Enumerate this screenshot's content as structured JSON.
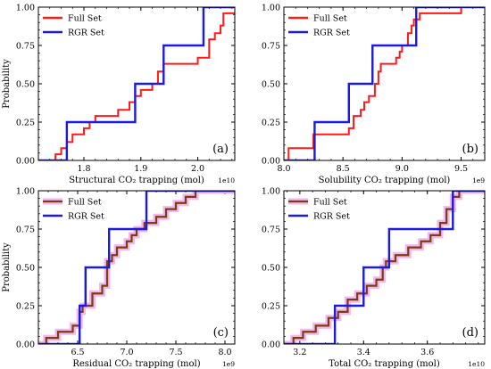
{
  "figure": {
    "legend": {
      "location": "upper-left"
    },
    "colors": {
      "full": "#ff1a1a",
      "rgr": "#1a1ae0",
      "full_shadow": "#f3b7f0",
      "residual_full": "#7a3e10",
      "rgr_outline": "#0000cc"
    }
  },
  "chart_data": [
    {
      "type": "line",
      "kind": "empirical-cdf",
      "panel_label": "(a)",
      "xlabel": "Structural CO₂ trapping (mol)",
      "ylabel": "Probability",
      "x_multiplier": "1e10",
      "xlim": [
        1.72,
        2.065
      ],
      "ylim": [
        0,
        1
      ],
      "xticks": [
        1.8,
        1.9,
        2.0
      ],
      "xtick_labels": [
        "1.8",
        "1.9",
        "2.0"
      ],
      "yticks": [
        0,
        0.25,
        0.5,
        0.75,
        1.0
      ],
      "ytick_labels": [
        "0.00",
        "0.25",
        "0.50",
        "0.75",
        "1.00"
      ],
      "style": "full-red",
      "series": [
        {
          "name": "Full Set",
          "x": [
            1.75,
            1.76,
            1.77,
            1.78,
            1.8,
            1.81,
            1.82,
            1.86,
            1.88,
            1.89,
            1.9,
            1.92,
            1.93,
            1.94,
            2.0,
            2.02,
            2.03,
            2.04,
            2.045
          ],
          "y": [
            0.04,
            0.08,
            0.12,
            0.17,
            0.21,
            0.25,
            0.29,
            0.33,
            0.38,
            0.42,
            0.46,
            0.5,
            0.58,
            0.63,
            0.67,
            0.79,
            0.83,
            0.88,
            0.96
          ]
        },
        {
          "name": "RGR Set",
          "x": [
            1.77,
            1.89,
            1.94,
            2.01,
            2.03
          ],
          "y": [
            0.25,
            0.5,
            0.75,
            1.0,
            1.0
          ]
        }
      ]
    },
    {
      "type": "line",
      "kind": "empirical-cdf",
      "panel_label": "(b)",
      "xlabel": "Solubility CO₂ trapping (mol)",
      "ylabel": "",
      "x_multiplier": "1e9",
      "xlim": [
        8.0,
        9.7
      ],
      "ylim": [
        0,
        1
      ],
      "xticks": [
        8.0,
        8.5,
        9.0,
        9.5
      ],
      "xtick_labels": [
        "8.0",
        "8.5",
        "9.0",
        "9.5"
      ],
      "yticks": [
        0,
        0.25,
        0.5,
        0.75,
        1.0
      ],
      "ytick_labels": [
        "0.00",
        "0.25",
        "0.50",
        "0.75",
        "1.00"
      ],
      "style": "full-red",
      "series": [
        {
          "name": "Full Set",
          "x": [
            8.04,
            8.25,
            8.55,
            8.59,
            8.65,
            8.68,
            8.72,
            8.77,
            8.8,
            8.82,
            8.95,
            8.98,
            9.0,
            9.05,
            9.08,
            9.1,
            9.15,
            9.2,
            9.5
          ],
          "y": [
            0.08,
            0.17,
            0.21,
            0.29,
            0.33,
            0.38,
            0.42,
            0.5,
            0.58,
            0.63,
            0.67,
            0.71,
            0.75,
            0.83,
            0.88,
            0.92,
            0.96,
            0.96,
            1.0
          ]
        },
        {
          "name": "RGR Set",
          "x": [
            8.26,
            8.55,
            8.75,
            9.12
          ],
          "y": [
            0.25,
            0.5,
            0.75,
            1.0
          ]
        }
      ]
    },
    {
      "type": "line",
      "kind": "empirical-cdf",
      "panel_label": "(c)",
      "xlabel": "Residual CO₂ trapping (mol)",
      "ylabel": "Probability",
      "x_multiplier": "1e9",
      "xlim": [
        6.1,
        8.1
      ],
      "ylim": [
        0,
        1
      ],
      "xticks": [
        6.5,
        7.0,
        7.5,
        8.0
      ],
      "xtick_labels": [
        "6.5",
        "7.0",
        "7.5",
        "8.0"
      ],
      "yticks": [
        0,
        0.25,
        0.5,
        0.75,
        1.0
      ],
      "ytick_labels": [
        "0.00",
        "0.25",
        "0.50",
        "0.75",
        "1.00"
      ],
      "style": "full-brown",
      "series": [
        {
          "name": "Full Set",
          "x": [
            6.18,
            6.3,
            6.45,
            6.52,
            6.55,
            6.65,
            6.75,
            6.8,
            6.85,
            6.9,
            7.0,
            7.05,
            7.1,
            7.18,
            7.3,
            7.4,
            7.5,
            7.6,
            7.7
          ],
          "y": [
            0.04,
            0.08,
            0.12,
            0.21,
            0.25,
            0.33,
            0.38,
            0.54,
            0.58,
            0.63,
            0.67,
            0.71,
            0.75,
            0.79,
            0.83,
            0.88,
            0.92,
            0.96,
            1.0
          ]
        },
        {
          "name": "RGR Set",
          "x": [
            6.52,
            6.58,
            6.82,
            7.2
          ],
          "y": [
            0.25,
            0.5,
            0.75,
            1.0
          ]
        }
      ]
    },
    {
      "type": "line",
      "kind": "empirical-cdf",
      "panel_label": "(d)",
      "xlabel": "Total CO₂ trapping (mol)",
      "ylabel": "",
      "x_multiplier": "1e10",
      "xlim": [
        3.15,
        3.78
      ],
      "ylim": [
        0,
        1
      ],
      "xticks": [
        3.2,
        3.4,
        3.6
      ],
      "xtick_labels": [
        "3.2",
        "3.4",
        "3.6"
      ],
      "yticks": [
        0,
        0.25,
        0.5,
        0.75,
        1.0
      ],
      "ytick_labels": [
        "0.00",
        "0.25",
        "0.50",
        "0.75",
        "1.00"
      ],
      "style": "full-brown",
      "series": [
        {
          "name": "Full Set",
          "x": [
            3.18,
            3.21,
            3.25,
            3.29,
            3.32,
            3.35,
            3.38,
            3.41,
            3.44,
            3.46,
            3.47,
            3.5,
            3.54,
            3.58,
            3.61,
            3.64,
            3.66,
            3.68,
            3.7
          ],
          "y": [
            0.04,
            0.08,
            0.12,
            0.17,
            0.21,
            0.29,
            0.33,
            0.38,
            0.42,
            0.5,
            0.54,
            0.58,
            0.63,
            0.67,
            0.71,
            0.79,
            0.88,
            0.96,
            1.0
          ]
        },
        {
          "name": "RGR Set",
          "x": [
            3.31,
            3.4,
            3.48,
            3.68
          ],
          "y": [
            0.25,
            0.5,
            0.75,
            1.0
          ]
        }
      ]
    }
  ]
}
